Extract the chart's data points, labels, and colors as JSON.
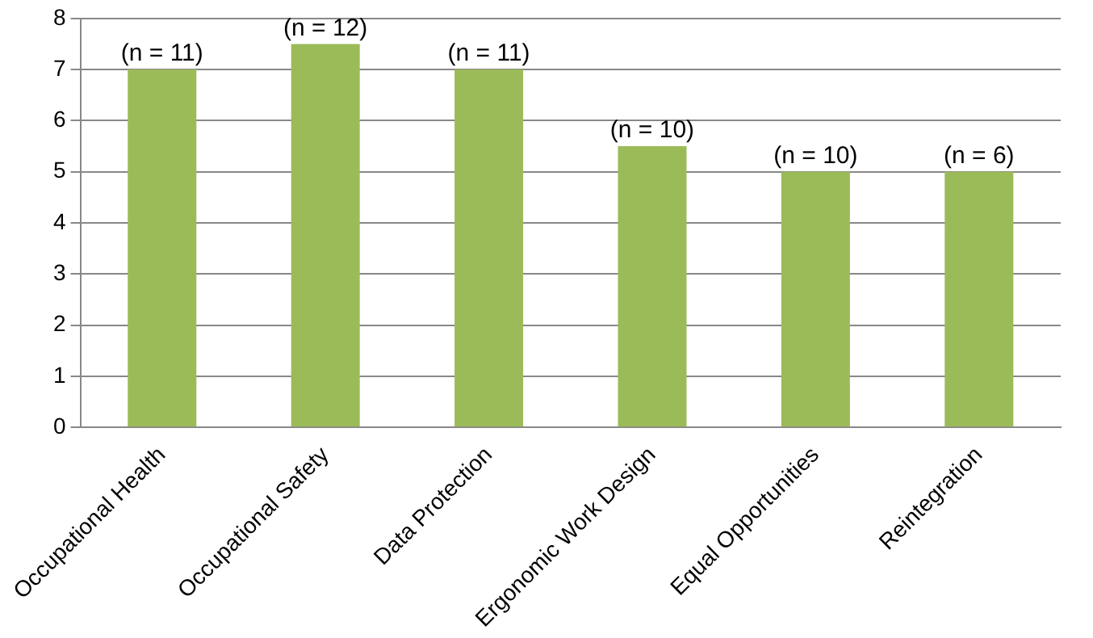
{
  "chart_data": {
    "type": "bar",
    "categories": [
      "Occupational Health",
      "Occupational Safety",
      "Data Protection",
      "Ergonomic Work Design",
      "Equal Opportunities",
      "Reintegration"
    ],
    "values": [
      7,
      7.5,
      7,
      5.5,
      5,
      5
    ],
    "annotations": [
      {
        "text": "(n = 11)",
        "x": "Occupational Health",
        "y": 7
      },
      {
        "text": "(n = 12)",
        "x": "Occupational Safety",
        "y": 7.5
      },
      {
        "text": "(n = 11)",
        "x": "Data Protection",
        "y": 7
      },
      {
        "text": "(n = 10)",
        "x": "Ergonomic Work Design",
        "y": 5.5
      },
      {
        "text": "(n = 10)",
        "x": "Equal Opportunities",
        "y": 5
      },
      {
        "text": "(n = 6)",
        "x": "Reintegration",
        "y": 5
      }
    ],
    "color": "#9bbb59",
    "ylim": [
      0,
      8
    ],
    "yticks": [
      0,
      1,
      2,
      3,
      4,
      5,
      6,
      7,
      8
    ],
    "grid": "y"
  }
}
